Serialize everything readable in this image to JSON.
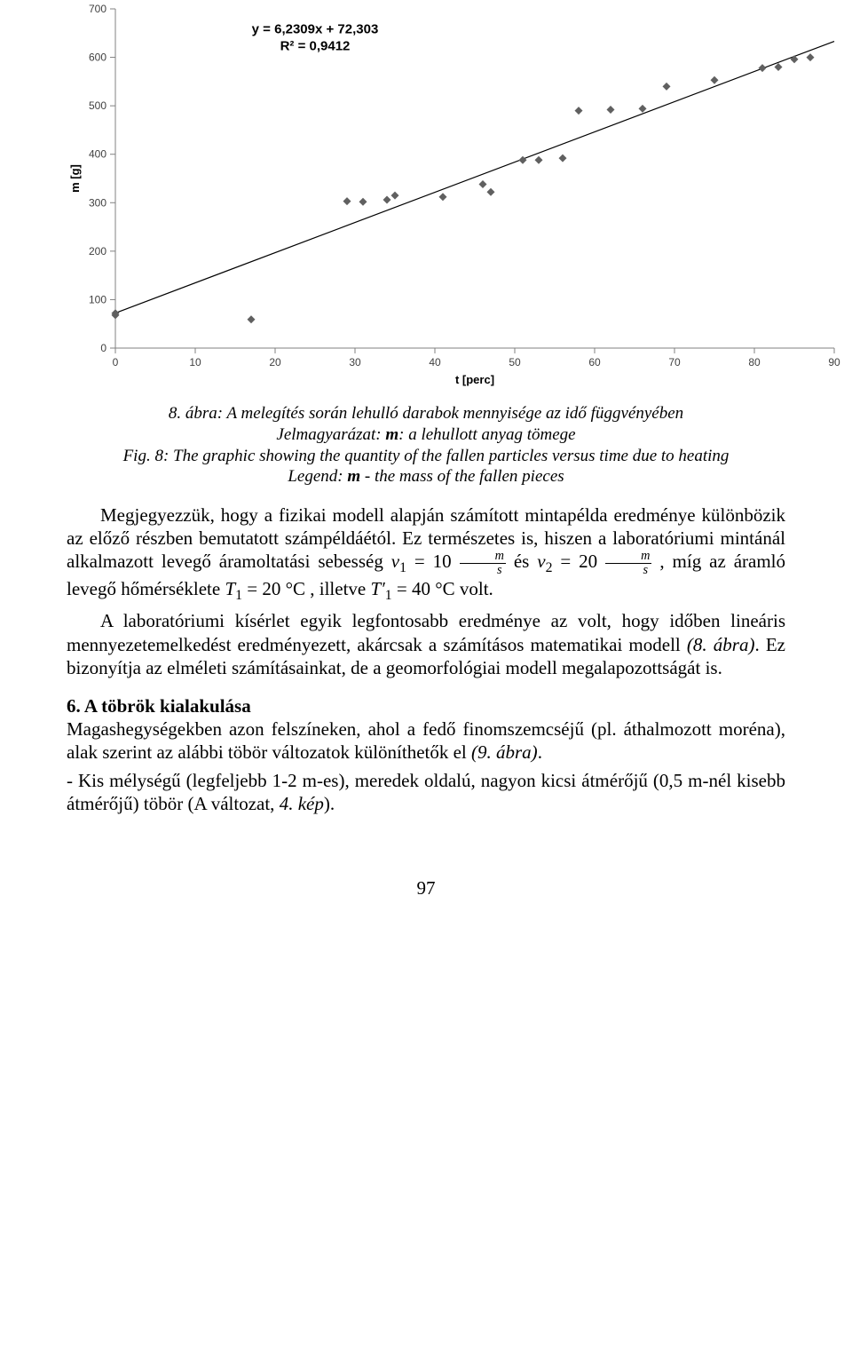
{
  "chart": {
    "type": "scatter",
    "equation": "y = 6,2309x + 72,303",
    "r_squared": "R² = 0,9412",
    "x_axis_label": "t [perc]",
    "y_axis_label": "m [g]",
    "xlim": [
      0,
      90
    ],
    "ylim": [
      0,
      700
    ],
    "xtick_step": 10,
    "ytick_step": 100,
    "background_color": "#ffffff",
    "grid_color": "none",
    "axis_color": "#808080",
    "tick_color": "#808080",
    "marker_style": "diamond",
    "marker_size": 9,
    "marker_color": "#606060",
    "trendline_color": "#000000",
    "trendline_width": 1.2,
    "trend_slope": 6.2309,
    "trend_intercept": 72.303,
    "points": [
      [
        0,
        72
      ],
      [
        0,
        68
      ],
      [
        17,
        59
      ],
      [
        29,
        303
      ],
      [
        31,
        302
      ],
      [
        34,
        306
      ],
      [
        35,
        315
      ],
      [
        41,
        312
      ],
      [
        46,
        338
      ],
      [
        47,
        322
      ],
      [
        51,
        388
      ],
      [
        53,
        388
      ],
      [
        56,
        392
      ],
      [
        58,
        490
      ],
      [
        62,
        492
      ],
      [
        66,
        494
      ],
      [
        69,
        540
      ],
      [
        75,
        553
      ],
      [
        81,
        578
      ],
      [
        83,
        580
      ],
      [
        85,
        596
      ],
      [
        87,
        600
      ]
    ]
  },
  "caption": {
    "line1": "8. ábra: A melegítés során lehulló darabok mennyisége az idő függvényében",
    "line2_prefix": "Jelmagyarázat: ",
    "line2_bold": "m",
    "line2_suffix": ": a lehullott anyag tömege",
    "line3_prefix": "Fig. 8: The graphic showing the quantity of the fallen particles versus time due to heating",
    "line4_prefix": "Legend: ",
    "line4_bold": "m",
    "line4_suffix": " - the mass of the fallen pieces"
  },
  "paragraphs": {
    "p1": "Megjegyezzük, hogy a fizikai modell alapján számított mintapélda eredménye különbözik az előző részben bemutatott számpéldáétól. Ez természetes is, hiszen a laboratóriumi mintánál alkalmazott levegő áramoltatási sebesség ",
    "p1_math1_v": "v",
    "p1_math1_sub": "1",
    "p1_math1_eq": " = 10 ",
    "p1_and": " és ",
    "p1_math2_v": "v",
    "p1_math2_sub": "2",
    "p1_math2_eq": " = 20 ",
    "p1_mid": " , míg az áramló levegő hőmérséklete ",
    "p1_T1": "T",
    "p1_T1sub": "1",
    "p1_T1eq": " = 20 °C ",
    "p1_ill": ", illetve ",
    "p1_T1p": "T",
    "p1_T1psub": "1",
    "p1_T1peq": " = 40 °C ",
    "p1_end": "volt.",
    "frac_n": "m",
    "frac_d": "s",
    "p2": "A laboratóriumi kísérlet egyik legfontosabb eredménye az volt, hogy időben lineáris mennyezetemelkedést eredményezett, akárcsak a számításos matematikai modell ",
    "p2_ref": "(8. ábra)",
    "p2_cont": ". Ez bizonyítja az elméleti számításainkat, de a geomorfológiai modell megalapozottságát is.",
    "section6": "6. A töbrök kialakulása",
    "p3": "Magashegységekben azon felszíneken, ahol a fedő finomszemcséjű (pl. áthalmozott moréna), alak szerint az alábbi töbör változatok különíthetők el ",
    "p3_ref": "(9. ábra)",
    "p3_end": ".",
    "p4": "- Kis mélységű (legfeljebb 1-2 m-es), meredek oldalú, nagyon kicsi átmérőjű (0,5 m-nél kisebb átmérőjű) töbör (A változat, ",
    "p4_ref": "4. kép",
    "p4_end": ")."
  },
  "page_number": "97"
}
